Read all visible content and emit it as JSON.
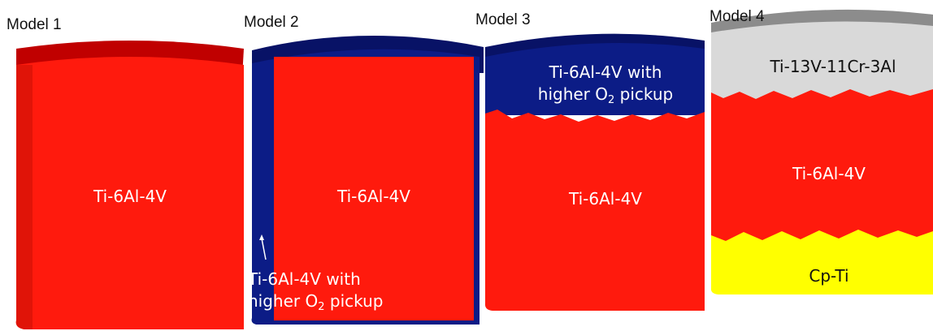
{
  "models": [
    {
      "caption": "Model 1",
      "layers": [
        {
          "label": "Ti-6Al-4V"
        }
      ]
    },
    {
      "caption": "Model 2",
      "layers": [
        {
          "label": "Ti-6Al-4V"
        },
        {
          "label_line1": "Ti-6Al-4V with",
          "label_line2_pre": "higher O",
          "label_sub": "2",
          "label_line2_post": " pickup"
        }
      ]
    },
    {
      "caption": "Model 3",
      "layers": [
        {
          "label_line1": "Ti-6Al-4V with",
          "label_line2_pre": "higher O",
          "label_sub": "2",
          "label_line2_post": " pickup"
        },
        {
          "label": "Ti-6Al-4V"
        }
      ]
    },
    {
      "caption": "Model 4",
      "layers": [
        {
          "label": "Ti-13V-11Cr-3Al"
        },
        {
          "label": "Ti-6Al-4V"
        },
        {
          "label": "Cp-Ti"
        }
      ]
    }
  ],
  "colors": {
    "ti64": "#ff1a0d",
    "ti64_dark": "#c00000",
    "o2_layer": "#0c1c86",
    "o2_dark": "#081266",
    "ti13": "#d9d9d9",
    "ti13_dark": "#8c8c8c",
    "cpti": "#ffff00",
    "label_light": "#ffffff",
    "label_dark": "#111111"
  }
}
